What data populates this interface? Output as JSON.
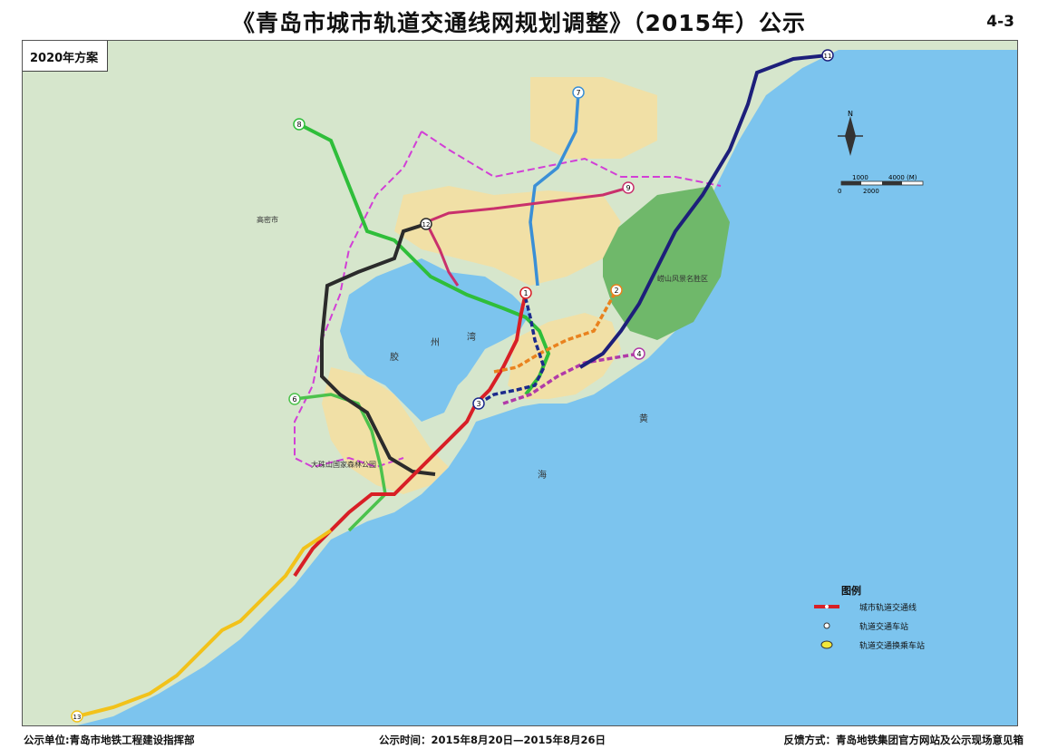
{
  "header": {
    "title": "《青岛市城市轨道交通线网规划调整》（2015年）公示",
    "sheet_number": "4-3"
  },
  "map": {
    "scheme_label": "2020年方案",
    "sea_labels": [
      "胶",
      "州",
      "湾",
      "黄",
      "海"
    ],
    "place_labels": {
      "gaomi": "高密市",
      "laoshan": "崂山风景名胜区",
      "dazhushan": "大珠山国家森林公园"
    },
    "colors": {
      "sea": "#7cc4ee",
      "land": "#cfe2c4",
      "urban": "#f1e0a6",
      "forest": "#6fb86a",
      "boundary": "#d23fd6"
    },
    "lines": [
      {
        "number": "1",
        "color": "#d81f26"
      },
      {
        "number": "2",
        "color": "#e9821e"
      },
      {
        "number": "3",
        "color": "#1c2a8c"
      },
      {
        "number": "4",
        "color": "#b13aa8"
      },
      {
        "number": "6",
        "color": "#4cc24c"
      },
      {
        "number": "7",
        "color": "#3a8fd6"
      },
      {
        "number": "8",
        "color": "#2fbe3a"
      },
      {
        "number": "9",
        "color": "#c9306c"
      },
      {
        "number": "11",
        "color": "#1d1f7a"
      },
      {
        "number": "12",
        "color": "#2b2b2b"
      },
      {
        "number": "13",
        "color": "#f2c21a"
      }
    ],
    "compass_label": "N",
    "scale": {
      "top_labels": [
        "1000",
        "4000 (M)"
      ],
      "bottom_labels": [
        "0",
        "2000"
      ]
    }
  },
  "legend": {
    "title": "图例",
    "items": [
      {
        "label": "城市轨道交通线"
      },
      {
        "label": "轨道交通车站"
      },
      {
        "label": "轨道交通换乘车站"
      }
    ]
  },
  "footer": {
    "publisher": "公示单位:青岛市地铁工程建设指挥部",
    "period": "公示时间：2015年8月20日—2015年8月26日",
    "feedback": "反馈方式：青岛地铁集团官方网站及公示现场意见箱"
  }
}
